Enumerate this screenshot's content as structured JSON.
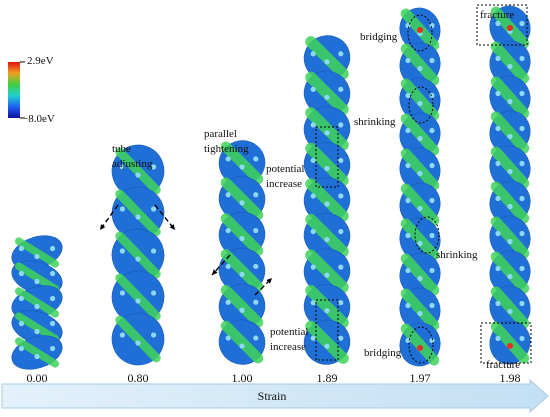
{
  "colorbar": {
    "max_label": "2.9eV",
    "min_label": "−8.0eV"
  },
  "strains": [
    "0.00",
    "0.80",
    "1.00",
    "1.89",
    "1.97",
    "1.98"
  ],
  "axis_label": "Strain",
  "annotations": [
    {
      "lines": [
        "tube",
        "adjusting"
      ]
    },
    {
      "lines": [
        "parallel",
        "tightening"
      ]
    },
    {
      "lines": [
        "potential",
        "increase"
      ]
    },
    {
      "lines": [
        "potential",
        "increase"
      ]
    },
    {
      "lines": [
        "bridging"
      ]
    },
    {
      "lines": [
        "shrinking"
      ]
    },
    {
      "lines": [
        "shrinking"
      ]
    },
    {
      "lines": [
        "bridging"
      ]
    },
    {
      "lines": [
        "fracture"
      ]
    },
    {
      "lines": [
        "fracture"
      ]
    }
  ]
}
